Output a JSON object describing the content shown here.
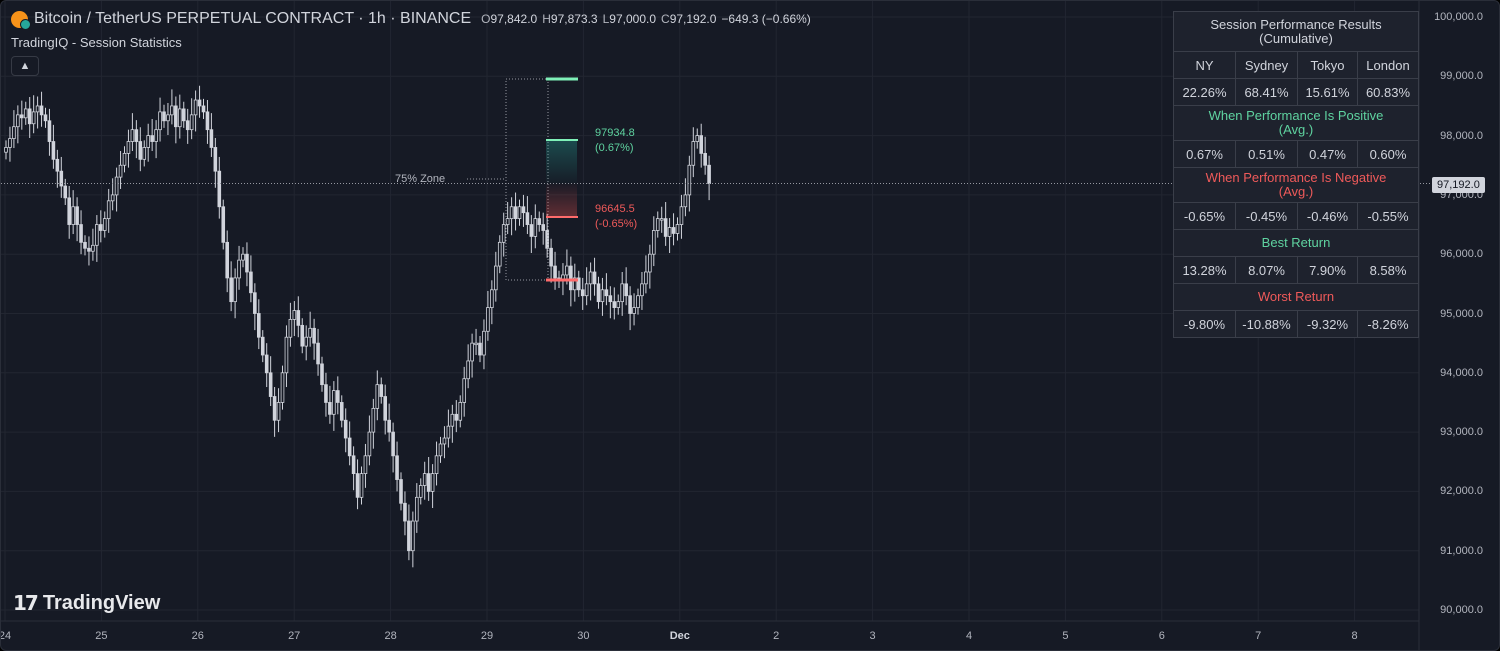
{
  "header": {
    "symbol": "Bitcoin / TetherUS PERPETUAL CONTRACT · 1h · BINANCE",
    "open_key": "O",
    "open": "97,842.0",
    "high_key": "H",
    "high": "97,873.3",
    "low_key": "L",
    "low": "97,000.0",
    "close_key": "C",
    "close": "97,192.0",
    "change": "−649.3 (−0.66%)"
  },
  "indicator": {
    "name": "TradingIQ - Session Statistics",
    "collapse_icon": "chevron-up-icon"
  },
  "branding": {
    "logo_mark": "17",
    "logo_text": "TradingView"
  },
  "price_axis": {
    "ticks": [
      "100,000.0",
      "99,000.0",
      "98,000.0",
      "97,000.0",
      "96,000.0",
      "95,000.0",
      "94,000.0",
      "93,000.0",
      "92,000.0",
      "91,000.0",
      "90,000.0"
    ],
    "current_price": "97,192.0"
  },
  "time_axis": {
    "ticks": [
      "24",
      "25",
      "26",
      "27",
      "28",
      "29",
      "30",
      "Dec",
      "2",
      "3",
      "4",
      "5",
      "6",
      "7",
      "8"
    ]
  },
  "annotations": {
    "zone_label": "75% Zone",
    "upper_value": "97934.8",
    "upper_pct": "(0.67%)",
    "lower_value": "96645.5",
    "lower_pct": "(-0.65%)"
  },
  "colors": {
    "background": "#161a25",
    "grid": "#222631",
    "candle": "#d1d4dc",
    "positive": "#5fd3a0",
    "negative": "#ef5a5a",
    "positive_line": "#7ff0b8",
    "negative_line": "#ff6b6b"
  },
  "table": {
    "title": "Session Performance Results",
    "subtitle": "(Cumulative)",
    "sessions": [
      "NY",
      "Sydney",
      "Tokyo",
      "London"
    ],
    "cumulative": [
      "22.26%",
      "68.41%",
      "15.61%",
      "60.83%"
    ],
    "positive_heading": "When Performance Is Positive",
    "positive_sub": "(Avg.)",
    "positive_avg": [
      "0.67%",
      "0.51%",
      "0.47%",
      "0.60%"
    ],
    "negative_heading": "When Performance Is Negative",
    "negative_sub": "(Avg.)",
    "negative_avg": [
      "-0.65%",
      "-0.45%",
      "-0.46%",
      "-0.55%"
    ],
    "best_heading": "Best Return",
    "best": [
      "13.28%",
      "8.07%",
      "7.90%",
      "8.58%"
    ],
    "worst_heading": "Worst Return",
    "worst": [
      "-9.80%",
      "-10.88%",
      "-9.32%",
      "-8.26%"
    ]
  },
  "chart_data": {
    "type": "candlestick",
    "ylim": [
      90000,
      100000
    ],
    "series_name": "",
    "closes": [
      97800,
      97950,
      98150,
      98350,
      98300,
      98450,
      98200,
      98400,
      98500,
      98350,
      98250,
      97900,
      97600,
      97400,
      97150,
      96950,
      96500,
      96800,
      96500,
      96200,
      96100,
      96050,
      96150,
      96500,
      96400,
      96600,
      96900,
      97000,
      97300,
      97500,
      97700,
      97900,
      98100,
      97900,
      97600,
      97800,
      98000,
      97900,
      98100,
      98400,
      98250,
      98350,
      98500,
      98150,
      98450,
      98250,
      98100,
      98350,
      98600,
      98500,
      98400,
      98100,
      97800,
      97400,
      96800,
      96200,
      95600,
      95200,
      95600,
      95900,
      96000,
      95700,
      95350,
      95000,
      94600,
      94300,
      94000,
      93600,
      93200,
      93500,
      94000,
      94600,
      94900,
      95050,
      94800,
      94450,
      94600,
      94750,
      94500,
      94150,
      93800,
      93500,
      93300,
      93700,
      93500,
      93200,
      92900,
      92600,
      92300,
      91900,
      92300,
      92600,
      93000,
      93400,
      93800,
      93600,
      93200,
      93000,
      92600,
      92200,
      91800,
      91500,
      91000,
      91500,
      91900,
      92100,
      92300,
      92000,
      92300,
      92600,
      92800,
      92900,
      93100,
      93300,
      93200,
      93500,
      93900,
      94200,
      94500,
      94500,
      94300,
      94700,
      95100,
      95400,
      95800,
      96200,
      96500,
      96600,
      96800,
      96600,
      96800,
      96700,
      96500,
      96300,
      96600,
      96500,
      96400,
      96100,
      95800,
      95600,
      95550,
      95650,
      95800,
      95400,
      95600,
      95400,
      95300,
      95500,
      95700,
      95500,
      95200,
      95400,
      95300,
      95200,
      95100,
      95200,
      95500,
      95300,
      95000,
      95100,
      95300,
      95500,
      95700,
      96000,
      96400,
      96600,
      96600,
      96300,
      96450,
      96350,
      96500,
      96800,
      97000,
      97500,
      97900,
      98000,
      97700,
      97500,
      97192
    ]
  }
}
